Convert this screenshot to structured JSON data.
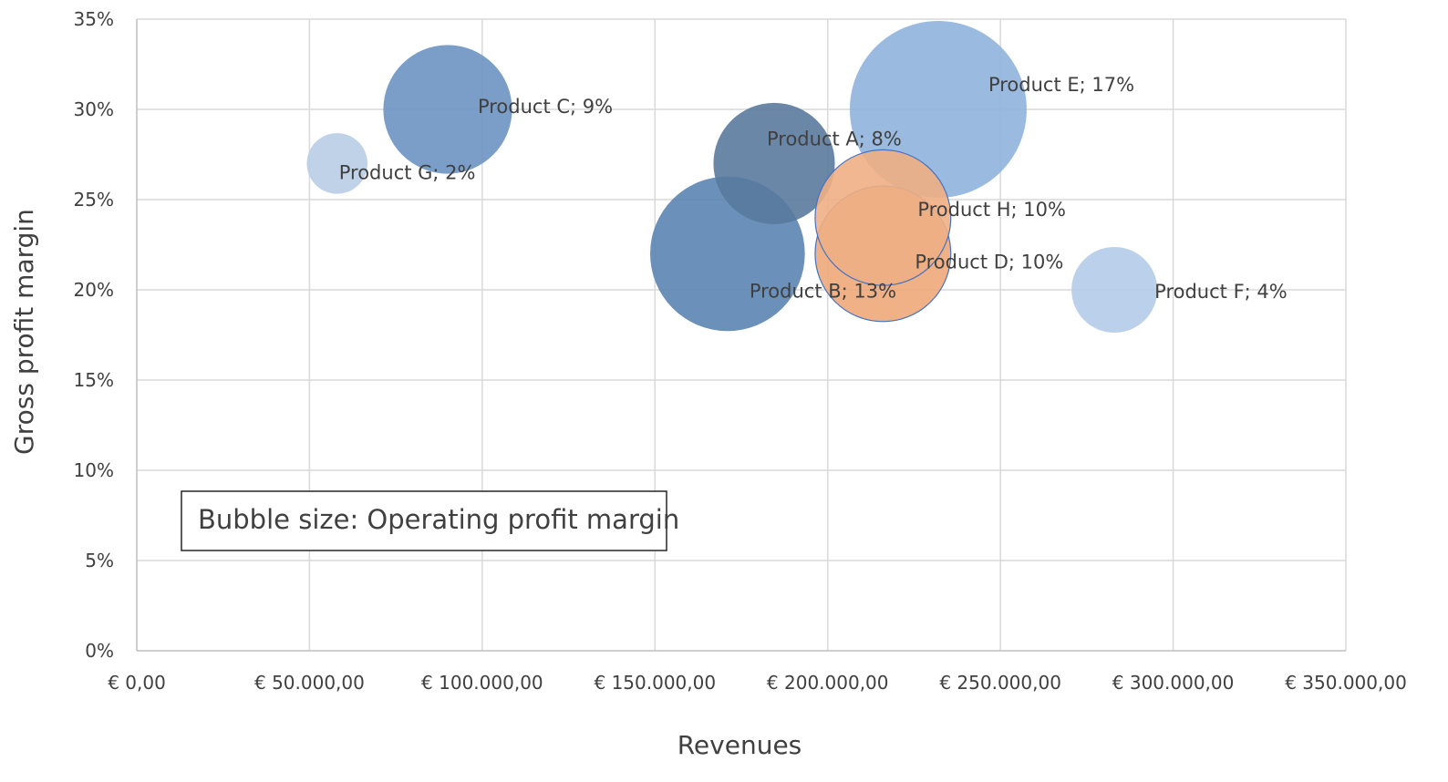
{
  "chart_data": {
    "type": "bubble",
    "xlabel": "Revenues",
    "ylabel": "Gross profit margin",
    "xlim": [
      0,
      350000
    ],
    "ylim": [
      0,
      0.35
    ],
    "x_ticks": [
      0,
      50000,
      100000,
      150000,
      200000,
      250000,
      300000,
      350000
    ],
    "x_tick_labels": [
      "€ 0,00",
      "€ 50.000,00",
      "€ 100.000,00",
      "€ 150.000,00",
      "€ 200.000,00",
      "€ 250.000,00",
      "€ 300.000,00",
      "€ 350.000,00"
    ],
    "y_ticks": [
      0,
      0.05,
      0.1,
      0.15,
      0.2,
      0.25,
      0.3,
      0.35
    ],
    "y_tick_labels": [
      "0%",
      "5%",
      "10%",
      "15%",
      "20%",
      "25%",
      "30%",
      "35%"
    ],
    "grid": true,
    "annotation": "Bubble size: Operating profit margin",
    "points": [
      {
        "label": "Product E; 17%",
        "x": 232000,
        "y": 0.3,
        "size": 0.17,
        "color": "#8fb3dc"
      },
      {
        "label": "Product B; 13%",
        "x": 171000,
        "y": 0.22,
        "size": 0.13,
        "color": "#5b84b1"
      },
      {
        "label": "Product C; 9%",
        "x": 90000,
        "y": 0.3,
        "size": 0.09,
        "color": "#6b94c2"
      },
      {
        "label": "Product A; 8%",
        "x": 184500,
        "y": 0.27,
        "size": 0.08,
        "color": "#5a7a9e"
      },
      {
        "label": "Product G; 2%",
        "x": 58000,
        "y": 0.27,
        "size": 0.02,
        "color": "#b8cde6"
      },
      {
        "label": "Product F; 4%",
        "x": 283000,
        "y": 0.2,
        "size": 0.04,
        "color": "#b4cbe8"
      },
      {
        "label": "Product D; 10%",
        "x": 216000,
        "y": 0.22,
        "size": 0.1,
        "color": "#eda878"
      },
      {
        "label": "Product H; 10%",
        "x": 216000,
        "y": 0.24,
        "size": 0.1,
        "color": "#eeaf84"
      }
    ]
  }
}
